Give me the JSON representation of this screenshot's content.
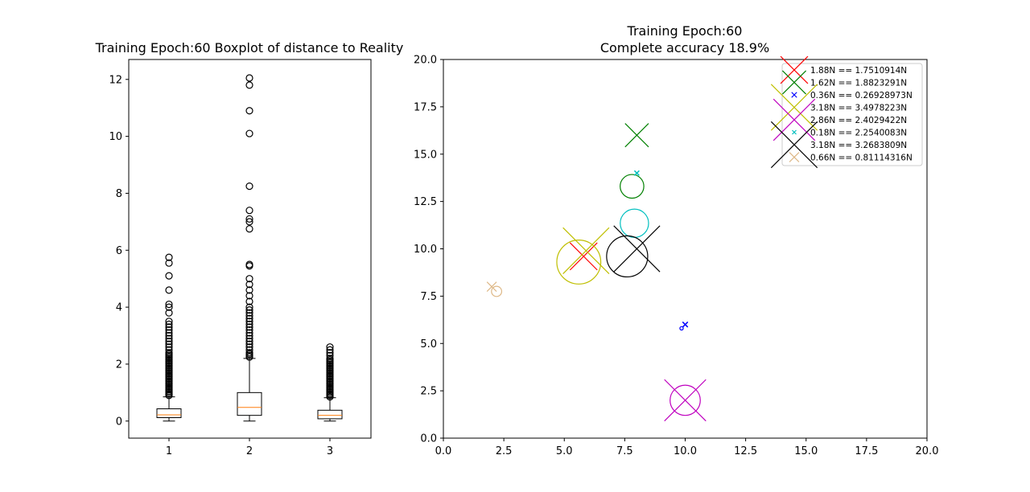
{
  "chart_data": [
    {
      "type": "boxplot",
      "title": "Training Epoch:60 Boxplot of distance to Reality",
      "categories": [
        "1",
        "2",
        "3"
      ],
      "ylim": [
        -0.6,
        12.7
      ],
      "yticks": [
        "0",
        "2",
        "4",
        "6",
        "8",
        "10",
        "12"
      ],
      "grid": false,
      "box_color": "#000000",
      "median_color": "#ff7f0e",
      "boxes": [
        {
          "label": "1",
          "whisker_low": 0.0,
          "q1": 0.12,
          "median": 0.22,
          "q3": 0.43,
          "whisker_high": 0.85,
          "outliers": [
            0.9,
            0.95,
            1.0,
            1.05,
            1.1,
            1.15,
            1.2,
            1.25,
            1.3,
            1.35,
            1.4,
            1.45,
            1.5,
            1.55,
            1.6,
            1.65,
            1.7,
            1.75,
            1.8,
            1.85,
            1.9,
            1.95,
            2.0,
            2.05,
            2.1,
            2.15,
            2.2,
            2.25,
            2.3,
            2.35,
            2.4,
            2.5,
            2.6,
            2.7,
            2.8,
            2.9,
            3.0,
            3.1,
            3.2,
            3.3,
            3.4,
            3.5,
            3.8,
            4.0,
            4.1,
            4.6,
            5.1,
            5.55,
            5.75
          ]
        },
        {
          "label": "2",
          "whisker_low": 0.0,
          "q1": 0.2,
          "median": 0.48,
          "q3": 1.0,
          "whisker_high": 2.2,
          "outliers": [
            2.25,
            2.3,
            2.35,
            2.4,
            2.5,
            2.6,
            2.7,
            2.8,
            2.9,
            3.0,
            3.1,
            3.2,
            3.3,
            3.4,
            3.5,
            3.6,
            3.7,
            3.8,
            3.9,
            4.0,
            4.2,
            4.4,
            4.6,
            4.8,
            5.0,
            5.45,
            5.5,
            6.75,
            7.0,
            7.1,
            7.4,
            8.25,
            10.1,
            10.9,
            11.8,
            12.05
          ]
        },
        {
          "label": "3",
          "whisker_low": 0.0,
          "q1": 0.08,
          "median": 0.2,
          "q3": 0.38,
          "whisker_high": 0.82,
          "outliers": [
            0.85,
            0.9,
            0.95,
            1.0,
            1.05,
            1.1,
            1.15,
            1.2,
            1.25,
            1.3,
            1.35,
            1.4,
            1.45,
            1.5,
            1.55,
            1.6,
            1.65,
            1.7,
            1.75,
            1.8,
            1.85,
            1.9,
            1.95,
            2.0,
            2.05,
            2.1,
            2.15,
            2.2,
            2.3,
            2.4,
            2.5,
            2.6
          ]
        }
      ]
    },
    {
      "type": "scatter",
      "title": "Training Epoch:60",
      "subtitle": "Complete accuracy 18.9%",
      "xlim": [
        0,
        20
      ],
      "ylim": [
        0,
        20
      ],
      "xticks": [
        "0.0",
        "2.5",
        "5.0",
        "7.5",
        "10.0",
        "12.5",
        "15.0",
        "17.5",
        "20.0"
      ],
      "yticks": [
        "0.0",
        "2.5",
        "5.0",
        "7.5",
        "10.0",
        "12.5",
        "15.0",
        "17.5",
        "20.0"
      ],
      "grid": false,
      "legend_position": "top-right",
      "series": [
        {
          "name": "1.88N == 1.7510914N",
          "color": "#ff0000",
          "x": 5.8,
          "y": 9.6,
          "predicted": 1.88,
          "actual": 1.7510914
        },
        {
          "name": "1.62N == 1.8823291N",
          "color": "#008000",
          "x": 8.0,
          "y": 16.0,
          "cx": 7.8,
          "cy": 13.3,
          "predicted": 1.62,
          "actual": 1.8823291
        },
        {
          "name": "0.36N == 0.26928973N",
          "color": "#0000ff",
          "x": 10.0,
          "y": 6.0,
          "cx": 9.85,
          "cy": 5.8,
          "predicted": 0.36,
          "actual": 0.26928973
        },
        {
          "name": "3.18N == 3.4978223N",
          "color": "#bfbf00",
          "x": 5.9,
          "y": 9.9,
          "cx": 5.6,
          "cy": 9.3,
          "predicted": 3.18,
          "actual": 3.4978223
        },
        {
          "name": "2.86N == 2.4029422N",
          "color": "#bf00bf",
          "x": 10.0,
          "y": 2.0,
          "cx": 10.0,
          "cy": 2.0,
          "predicted": 2.86,
          "actual": 2.4029422
        },
        {
          "name": "0.18N == 2.2540083N",
          "color": "#00bfbf",
          "x": 8.0,
          "y": 14.0,
          "cx": 7.9,
          "cy": 11.35,
          "predicted": 0.18,
          "actual": 2.2540083
        },
        {
          "name": "3.18N == 3.2683809N",
          "color": "#000000",
          "x": 8.0,
          "y": 10.0,
          "cx": 7.6,
          "cy": 9.6,
          "predicted": 3.18,
          "actual": 3.2683809
        },
        {
          "name": "0.66N == 0.81114316N",
          "color": "#deb887",
          "x": 2.0,
          "y": 8.0,
          "cx": 2.2,
          "cy": 7.75,
          "predicted": 0.66,
          "actual": 0.81114316
        }
      ]
    }
  ]
}
